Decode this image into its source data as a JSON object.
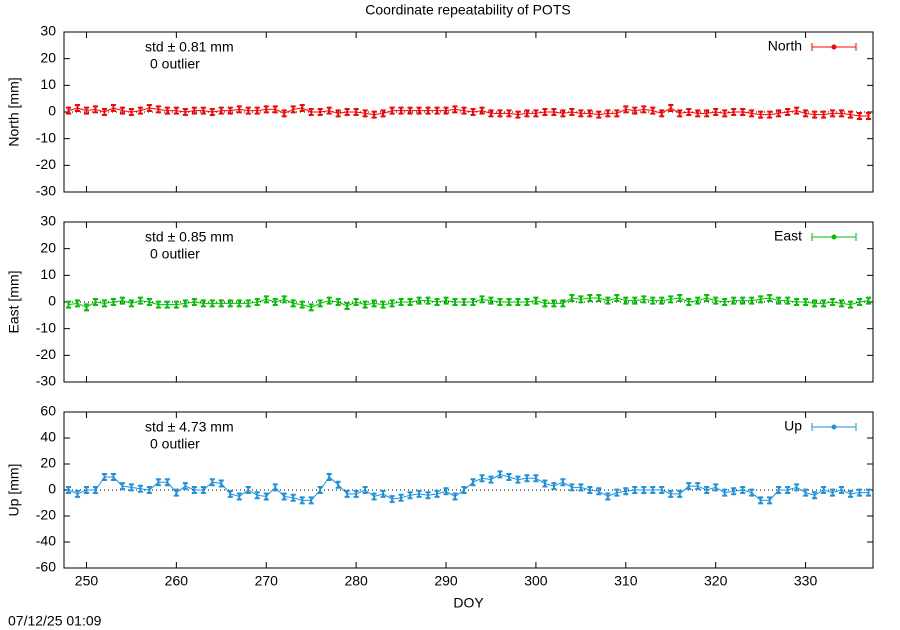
{
  "timestamp": "07/12/25 01:09",
  "chart_data": [
    {
      "type": "line",
      "title": "Coordinate repeatability of POTS",
      "y_label": "North [mm]",
      "annotations": [
        "std ± 0.81 mm",
        "0 outlier"
      ],
      "legend": "top-right",
      "reference_line": 0,
      "show_xtick_labels": false,
      "xlim": [
        247.5,
        337.5
      ],
      "xticks": [
        250,
        260,
        270,
        280,
        290,
        300,
        310,
        320,
        330
      ],
      "ylim": [
        -30,
        30
      ],
      "yticks": [
        -30,
        -20,
        -10,
        0,
        10,
        20,
        30
      ],
      "x": [
        248,
        249,
        250,
        251,
        252,
        253,
        254,
        255,
        256,
        257,
        258,
        259,
        260,
        261,
        262,
        263,
        264,
        265,
        266,
        267,
        268,
        269,
        270,
        271,
        272,
        273,
        274,
        275,
        276,
        277,
        278,
        279,
        280,
        281,
        282,
        283,
        284,
        285,
        286,
        287,
        288,
        289,
        290,
        291,
        292,
        293,
        294,
        295,
        296,
        297,
        298,
        299,
        300,
        301,
        302,
        303,
        304,
        305,
        306,
        307,
        308,
        309,
        310,
        311,
        312,
        313,
        314,
        315,
        316,
        317,
        318,
        319,
        320,
        321,
        322,
        323,
        324,
        325,
        326,
        327,
        328,
        329,
        330,
        331,
        332,
        333,
        334,
        335,
        336,
        337
      ],
      "series": [
        {
          "name": "North",
          "color": "#ff0000",
          "values": [
            0.5,
            1.5,
            0.5,
            1,
            0,
            1.5,
            0.5,
            0,
            0.5,
            1.5,
            1,
            0.5,
            0.5,
            0,
            0.5,
            0.5,
            0,
            0.5,
            0.5,
            1,
            0.5,
            0.5,
            1,
            1,
            -0.5,
            1,
            1.5,
            0,
            0,
            0.5,
            -0.5,
            0,
            0,
            -0.5,
            -1,
            -0.5,
            0.5,
            0.5,
            0.5,
            0.5,
            0.5,
            0.5,
            0.5,
            1,
            0.5,
            0,
            0.5,
            -0.5,
            -0.5,
            -0.5,
            -1,
            -0.5,
            -0.5,
            0,
            0,
            -0.5,
            0,
            -0.5,
            -0.5,
            -1,
            -0.5,
            -0.5,
            1,
            0.5,
            1,
            0.5,
            -0.5,
            1.5,
            -0.5,
            0,
            -0.5,
            -0.5,
            0,
            -0.5,
            0,
            0,
            -0.5,
            -1,
            -1,
            -0.5,
            0,
            0.5,
            -0.5,
            -1,
            -1,
            -0.5,
            -0.5,
            -1,
            -1.5,
            -1.5
          ]
        }
      ]
    },
    {
      "type": "line",
      "y_label": "East [mm]",
      "annotations": [
        "std ± 0.85 mm",
        "0 outlier"
      ],
      "legend": "top-right",
      "reference_line": 0,
      "show_xtick_labels": false,
      "xlim": [
        247.5,
        337.5
      ],
      "xticks": [
        250,
        260,
        270,
        280,
        290,
        300,
        310,
        320,
        330
      ],
      "ylim": [
        -30,
        30
      ],
      "yticks": [
        -30,
        -20,
        -10,
        0,
        10,
        20,
        30
      ],
      "x": [
        248,
        249,
        250,
        251,
        252,
        253,
        254,
        255,
        256,
        257,
        258,
        259,
        260,
        261,
        262,
        263,
        264,
        265,
        266,
        267,
        268,
        269,
        270,
        271,
        272,
        273,
        274,
        275,
        276,
        277,
        278,
        279,
        280,
        281,
        282,
        283,
        284,
        285,
        286,
        287,
        288,
        289,
        290,
        291,
        292,
        293,
        294,
        295,
        296,
        297,
        298,
        299,
        300,
        301,
        302,
        303,
        304,
        305,
        306,
        307,
        308,
        309,
        310,
        311,
        312,
        313,
        314,
        315,
        316,
        317,
        318,
        319,
        320,
        321,
        322,
        323,
        324,
        325,
        326,
        327,
        328,
        329,
        330,
        331,
        332,
        333,
        334,
        335,
        336,
        337
      ],
      "series": [
        {
          "name": "East",
          "color": "#00c000",
          "values": [
            -1,
            -0.5,
            -2,
            0,
            -0.5,
            0,
            0.5,
            -0.5,
            0.5,
            0,
            -1,
            -1,
            -1,
            -0.5,
            0,
            -0.5,
            -0.5,
            -0.5,
            -0.5,
            -0.5,
            -0.5,
            0,
            1,
            0,
            1,
            -0.5,
            -1,
            -2,
            -0.5,
            0.5,
            0,
            -1.5,
            0,
            -1,
            -0.5,
            -1,
            -0.5,
            0,
            0,
            0.5,
            0.5,
            0,
            0.5,
            0,
            0,
            0,
            1,
            0.5,
            0,
            0,
            0,
            0,
            0.5,
            -0.5,
            -0.5,
            -0.5,
            1.5,
            1,
            1.5,
            1.5,
            0.5,
            1.5,
            0.5,
            0.5,
            1,
            0.5,
            0.5,
            1,
            1.5,
            0,
            0.5,
            1.5,
            0.5,
            0,
            0.5,
            0.5,
            0.5,
            1,
            1.5,
            0.5,
            0.5,
            0,
            0,
            -0.5,
            -0.5,
            0,
            -0.5,
            -1,
            0,
            0.5
          ]
        }
      ]
    },
    {
      "type": "line",
      "y_label": "Up [mm]",
      "x_label": "DOY",
      "annotations": [
        "std ± 4.73 mm",
        "0 outlier"
      ],
      "legend": "top-right",
      "reference_line": 0,
      "show_xtick_labels": true,
      "xlim": [
        247.5,
        337.5
      ],
      "xticks": [
        250,
        260,
        270,
        280,
        290,
        300,
        310,
        320,
        330
      ],
      "ylim": [
        -60,
        60
      ],
      "yticks": [
        -60,
        -40,
        -20,
        0,
        20,
        40,
        60
      ],
      "x": [
        248,
        249,
        250,
        251,
        252,
        253,
        254,
        255,
        256,
        257,
        258,
        259,
        260,
        261,
        262,
        263,
        264,
        265,
        266,
        267,
        268,
        269,
        270,
        271,
        272,
        273,
        274,
        275,
        276,
        277,
        278,
        279,
        280,
        281,
        282,
        283,
        284,
        285,
        286,
        287,
        288,
        289,
        290,
        291,
        292,
        293,
        294,
        295,
        296,
        297,
        298,
        299,
        300,
        301,
        302,
        303,
        304,
        305,
        306,
        307,
        308,
        309,
        310,
        311,
        312,
        313,
        314,
        315,
        316,
        317,
        318,
        319,
        320,
        321,
        322,
        323,
        324,
        325,
        326,
        327,
        328,
        329,
        330,
        331,
        332,
        333,
        334,
        335,
        336,
        337
      ],
      "series": [
        {
          "name": "Up",
          "color": "#1e90e0",
          "values": [
            0,
            -3,
            0,
            0,
            10,
            10,
            3,
            2,
            1,
            0,
            6,
            6,
            -2,
            3,
            0,
            0,
            6,
            5,
            -3,
            -5,
            0,
            -4,
            -5,
            2,
            -5,
            -6,
            -8,
            -8,
            0,
            10,
            4,
            -3,
            -3,
            0,
            -5,
            -3,
            -7,
            -6,
            -4,
            -3,
            -4,
            -3,
            -1,
            -5,
            0,
            6,
            9,
            8,
            12,
            10,
            8,
            9,
            9,
            5,
            3,
            6,
            2,
            2,
            0,
            -1,
            -5,
            -2,
            -1,
            0,
            0,
            0,
            0,
            -3,
            -3,
            3,
            3,
            0,
            2,
            -2,
            -1,
            0,
            -2,
            -8,
            -8,
            0,
            0,
            2,
            -2,
            -4,
            0,
            -2,
            0,
            -3,
            -2,
            -2
          ]
        }
      ]
    }
  ]
}
